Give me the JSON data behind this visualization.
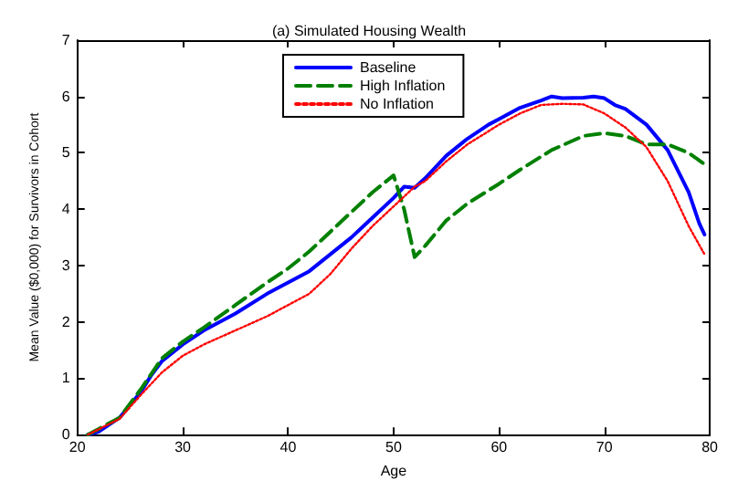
{
  "chart_data": {
    "type": "line",
    "title": "(a) Simulated Housing Wealth",
    "xlabel": "Age",
    "ylabel": "Mean Value ($0,000) for Survivors in Cohort",
    "xlim": [
      20,
      80
    ],
    "xticks": [
      20,
      30,
      40,
      50,
      60,
      70,
      80
    ],
    "ylim": [
      0,
      7
    ],
    "yticks": [
      0,
      1,
      2,
      3,
      4,
      5,
      6,
      7
    ],
    "grid": false,
    "legend": "top",
    "marker": "none",
    "series": [
      {
        "name": "Baseline",
        "color": "#0000ff",
        "line_style": "solid",
        "x": [
          21,
          22,
          24,
          26,
          27,
          28,
          30,
          32,
          35,
          38,
          40,
          42,
          44,
          46,
          48,
          50,
          51,
          52,
          53,
          55,
          57,
          59,
          60,
          62,
          64,
          65,
          66,
          68,
          69,
          70,
          71,
          72,
          74,
          76,
          78,
          79,
          79.5
        ],
        "values": [
          0,
          0.05,
          0.3,
          0.75,
          1.05,
          1.3,
          1.6,
          1.85,
          2.15,
          2.5,
          2.7,
          2.9,
          3.2,
          3.5,
          3.85,
          4.2,
          4.4,
          4.38,
          4.55,
          4.95,
          5.25,
          5.5,
          5.6,
          5.8,
          5.93,
          6.0,
          5.97,
          5.98,
          6.0,
          5.97,
          5.85,
          5.78,
          5.5,
          5.05,
          4.3,
          3.75,
          3.55
        ]
      },
      {
        "name": "High Inflation",
        "color": "#008000",
        "line_style": "dashed",
        "x": [
          21,
          24,
          26,
          28,
          30,
          32,
          35,
          38,
          40,
          42,
          44,
          46,
          48,
          50,
          51,
          52,
          53,
          55,
          57,
          60,
          62,
          65,
          68,
          70,
          72,
          74,
          76,
          78,
          79.5
        ],
        "values": [
          0,
          0.3,
          0.8,
          1.35,
          1.65,
          1.9,
          2.3,
          2.7,
          2.95,
          3.25,
          3.6,
          3.95,
          4.3,
          4.6,
          4.0,
          3.15,
          3.35,
          3.8,
          4.1,
          4.45,
          4.7,
          5.05,
          5.3,
          5.35,
          5.3,
          5.15,
          5.15,
          5.0,
          4.8
        ]
      },
      {
        "name": "No Inflation",
        "color": "#ff0000",
        "line_style": "dotted",
        "x": [
          21,
          24,
          26,
          28,
          30,
          32,
          35,
          38,
          40,
          42,
          44,
          46,
          48,
          50,
          52,
          53,
          55,
          57,
          60,
          62,
          64,
          66,
          68,
          70,
          72,
          74,
          76,
          78,
          79.5
        ],
        "values": [
          0,
          0.28,
          0.7,
          1.1,
          1.4,
          1.6,
          1.85,
          2.1,
          2.3,
          2.5,
          2.85,
          3.3,
          3.7,
          4.05,
          4.4,
          4.5,
          4.85,
          5.15,
          5.5,
          5.7,
          5.85,
          5.87,
          5.86,
          5.7,
          5.45,
          5.1,
          4.5,
          3.7,
          3.2
        ]
      }
    ]
  }
}
